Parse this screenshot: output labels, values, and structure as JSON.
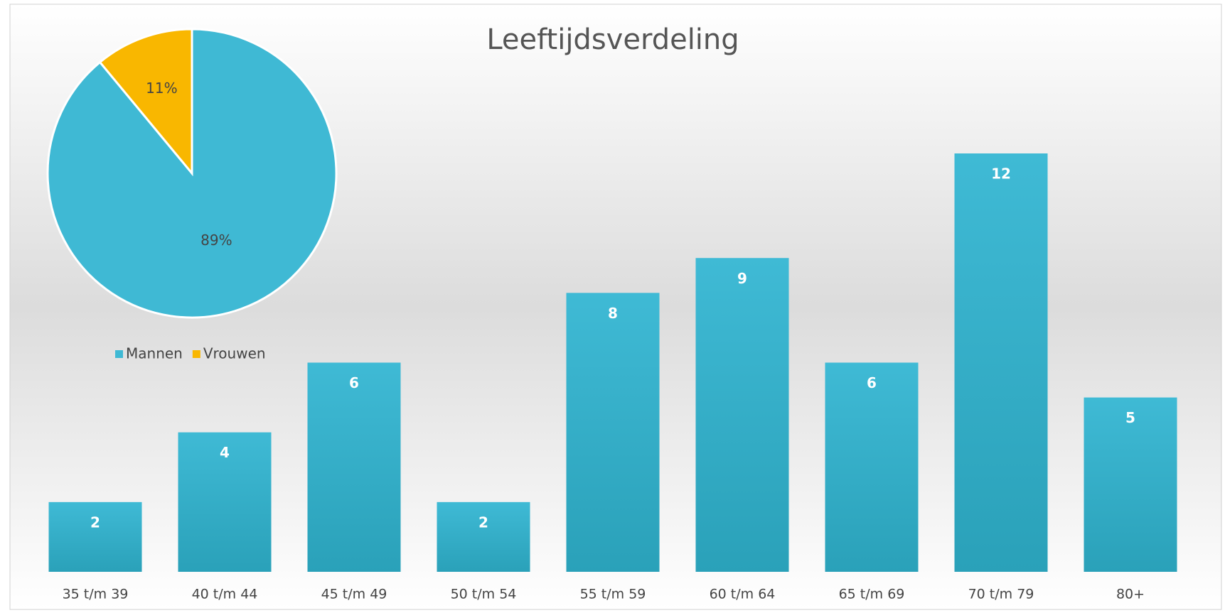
{
  "chart_data": [
    {
      "type": "bar",
      "title": "Leeftijdsverdeling",
      "categories": [
        "35 t/m 39",
        "40 t/m 44",
        "45 t/m 49",
        "50 t/m 54",
        "55 t/m 59",
        "60 t/m 64",
        "65 t/m 69",
        "70 t/m 79",
        "80+"
      ],
      "values": [
        2,
        4,
        6,
        2,
        8,
        9,
        6,
        12,
        5
      ],
      "color": "#3db8d3"
    },
    {
      "type": "pie",
      "categories": [
        "Mannen",
        "Vrouwen"
      ],
      "values": [
        89,
        11
      ],
      "value_labels": [
        "89%",
        "11%"
      ],
      "colors": [
        "#3fb9d4",
        "#f9b700"
      ],
      "legend": "bottom"
    }
  ]
}
